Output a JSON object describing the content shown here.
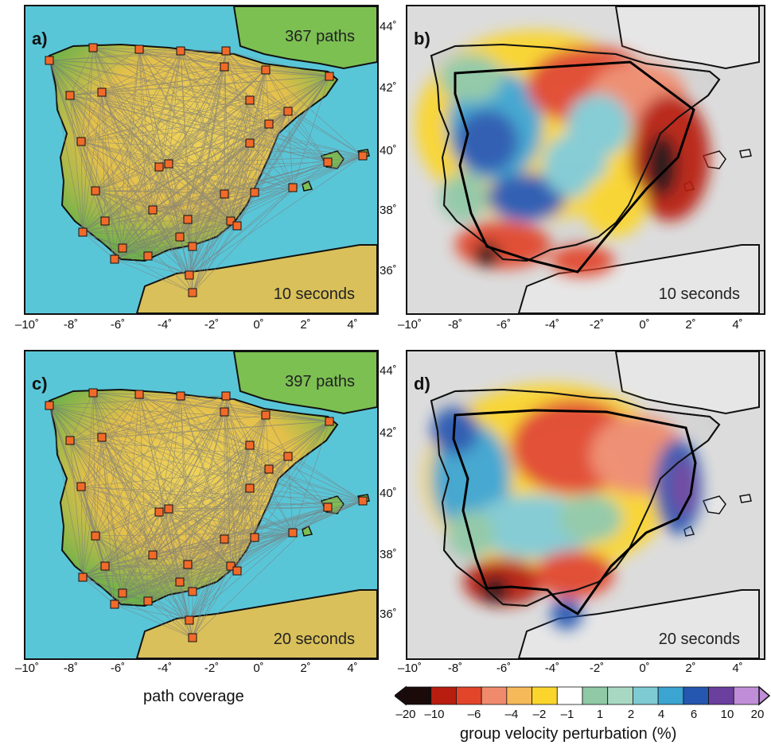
{
  "panels": {
    "a": {
      "label": "a)",
      "paths": "367 paths",
      "period": "10 seconds"
    },
    "b": {
      "label": "b)",
      "period": "10 seconds"
    },
    "c": {
      "label": "c)",
      "paths": "397 paths",
      "period": "20 seconds"
    },
    "d": {
      "label": "d)",
      "period": "20 seconds"
    }
  },
  "x_ticks": [
    "–10˚",
    "-8˚",
    "-6˚",
    "-4˚",
    "-2˚",
    "0˚",
    "2˚",
    "4˚"
  ],
  "y_ticks": [
    "44˚",
    "42˚",
    "40˚",
    "38˚",
    "36˚"
  ],
  "captions": {
    "path_coverage": "path coverage",
    "colorbar_title": "group velocity perturbation (%)"
  },
  "colorbar": {
    "ticks": [
      "–20",
      "–10",
      "–6",
      "–4",
      "–2",
      "–1",
      "1",
      "2",
      "4",
      "6",
      "10",
      "20"
    ],
    "colors": [
      "#1a0a0a",
      "#b81e10",
      "#e2452a",
      "#f08a6c",
      "#f6b95a",
      "#fbd52c",
      "#ffffff",
      "#8fc9a6",
      "#a8d8c2",
      "#7fcbd4",
      "#3ba4d0",
      "#2556b0",
      "#6a3f9e",
      "#c08ed8"
    ]
  },
  "colors": {
    "land_low": "#6fb24a",
    "land_mid": "#e8c84a",
    "sea": "#59c6d8",
    "station": "#f26a2a",
    "path": "#7a7a7a"
  }
}
